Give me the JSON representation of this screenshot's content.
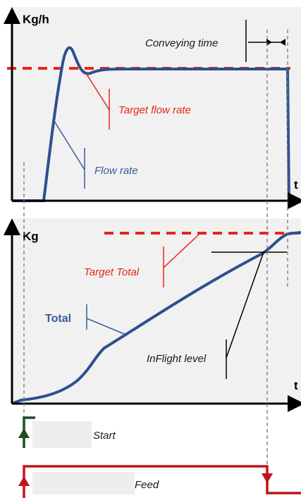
{
  "top_panel": {
    "y_axis_label": "Kg/h",
    "x_axis_label": "t",
    "annotations": {
      "conveying_time": "Conveying time",
      "target_flow_rate": "Target flow rate",
      "flow_rate": "Flow rate"
    }
  },
  "bottom_panel": {
    "y_axis_label": "Kg",
    "x_axis_label": "t",
    "annotations": {
      "target_total": "Target Total",
      "total": "Total",
      "inflight_level": "InFlight level"
    }
  },
  "signals": {
    "start": "Start",
    "feed": "Feed"
  },
  "colors": {
    "flow_curve": "#2f4f8f",
    "target": "#e8241a",
    "start_signal": "#1f4d1f",
    "feed_signal": "#c0141c",
    "panel_bg": "#f1f1f1",
    "signal_box": "#eeeeee"
  }
}
